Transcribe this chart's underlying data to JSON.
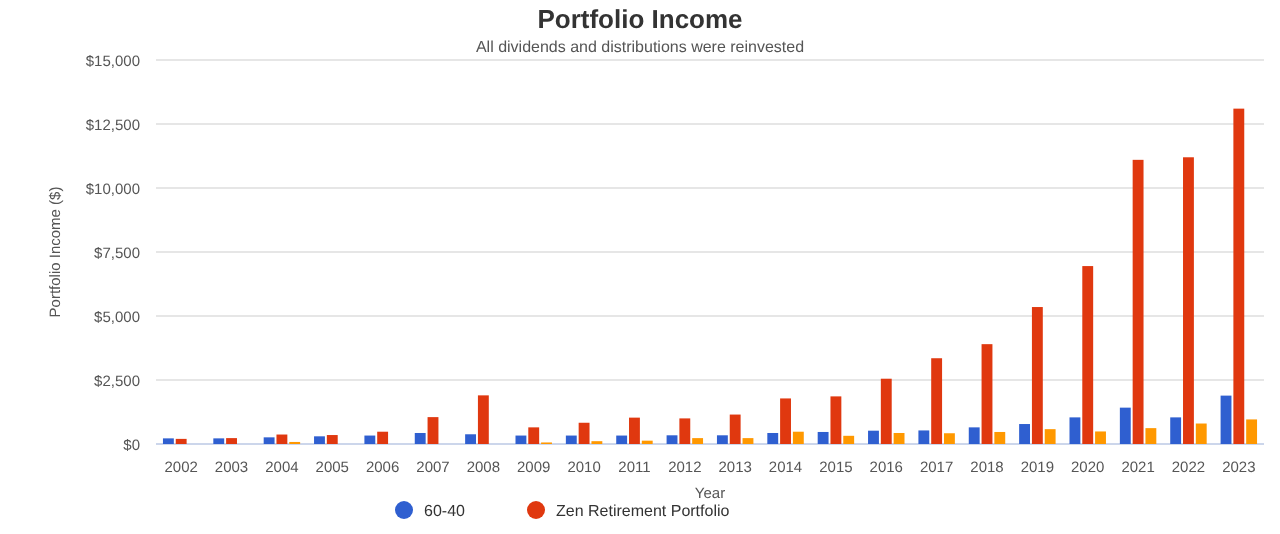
{
  "chart_data": {
    "type": "bar",
    "title": "Portfolio Income",
    "subtitle": "All dividends and distributions were reinvested",
    "xlabel": "Year",
    "ylabel": "Portfolio Income ($)",
    "categories": [
      "2002",
      "2003",
      "2004",
      "2005",
      "2006",
      "2007",
      "2008",
      "2009",
      "2010",
      "2011",
      "2012",
      "2013",
      "2014",
      "2015",
      "2016",
      "2017",
      "2018",
      "2019",
      "2020",
      "2021",
      "2022",
      "2023"
    ],
    "series": [
      {
        "name": "60-40",
        "color": "#2f5fd0",
        "values": [
          220,
          220,
          260,
          300,
          330,
          430,
          380,
          330,
          330,
          330,
          340,
          340,
          430,
          470,
          520,
          530,
          650,
          780,
          1040,
          1420,
          1040,
          1890
        ]
      },
      {
        "name": "Zen Retirement Portfolio",
        "color": "#e0380f",
        "values": [
          200,
          230,
          370,
          350,
          480,
          1050,
          1900,
          650,
          830,
          1030,
          1000,
          1150,
          1780,
          1860,
          2550,
          3350,
          3900,
          5350,
          6950,
          11100,
          11200,
          13100
        ]
      },
      {
        "color": "#ff9800",
        "values": [
          0,
          0,
          80,
          0,
          0,
          0,
          0,
          60,
          110,
          130,
          230,
          230,
          480,
          320,
          430,
          420,
          470,
          580,
          490,
          620,
          800,
          960
        ]
      }
    ],
    "ylim": [
      0,
      15000
    ],
    "yticks": [
      {
        "value": 0,
        "label": "$0"
      },
      {
        "value": 2500,
        "label": "$2,500"
      },
      {
        "value": 5000,
        "label": "$5,000"
      },
      {
        "value": 7500,
        "label": "$7,500"
      },
      {
        "value": 10000,
        "label": "$10,000"
      },
      {
        "value": 12500,
        "label": "$12,500"
      },
      {
        "value": 15000,
        "label": "$15,000"
      }
    ],
    "grid": "y",
    "legend": "bottom"
  }
}
